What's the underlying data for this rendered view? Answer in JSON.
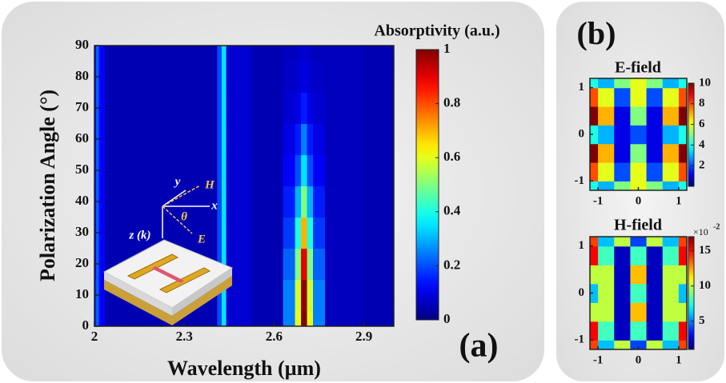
{
  "chart_data": [
    {
      "type": "heatmap",
      "panel_label": "(a)",
      "colorbar_label": "Absorptivity (a.u.)",
      "xlabel": "Wavelength (µm)",
      "ylabel": "Polarization Angle (°)",
      "x": [
        2.0,
        2.01,
        2.02,
        2.05,
        2.2,
        2.4,
        2.42,
        2.43,
        2.45,
        2.6,
        2.66,
        2.68,
        2.7,
        2.72,
        2.74,
        2.8,
        3.0
      ],
      "y": [
        0,
        10,
        20,
        30,
        40,
        50,
        60,
        70,
        80,
        90
      ],
      "z": [
        [
          0.15,
          0.22,
          0.12,
          0.05,
          0.05,
          0.05,
          0.2,
          0.35,
          0.08,
          0.05,
          0.25,
          0.6,
          1.0,
          0.6,
          0.25,
          0.06,
          0.05
        ],
        [
          0.15,
          0.22,
          0.12,
          0.05,
          0.05,
          0.05,
          0.2,
          0.35,
          0.08,
          0.05,
          0.25,
          0.58,
          0.98,
          0.58,
          0.25,
          0.06,
          0.05
        ],
        [
          0.12,
          0.22,
          0.12,
          0.05,
          0.05,
          0.05,
          0.2,
          0.35,
          0.08,
          0.05,
          0.22,
          0.5,
          0.9,
          0.5,
          0.22,
          0.06,
          0.05
        ],
        [
          0.1,
          0.22,
          0.12,
          0.05,
          0.05,
          0.05,
          0.2,
          0.35,
          0.08,
          0.05,
          0.18,
          0.4,
          0.7,
          0.4,
          0.18,
          0.06,
          0.05
        ],
        [
          0.1,
          0.22,
          0.12,
          0.05,
          0.05,
          0.05,
          0.2,
          0.35,
          0.08,
          0.05,
          0.15,
          0.3,
          0.5,
          0.3,
          0.15,
          0.06,
          0.05
        ],
        [
          0.1,
          0.22,
          0.12,
          0.05,
          0.05,
          0.05,
          0.2,
          0.35,
          0.08,
          0.05,
          0.12,
          0.2,
          0.35,
          0.2,
          0.12,
          0.06,
          0.05
        ],
        [
          0.1,
          0.22,
          0.12,
          0.05,
          0.05,
          0.05,
          0.2,
          0.35,
          0.08,
          0.05,
          0.1,
          0.15,
          0.25,
          0.15,
          0.1,
          0.06,
          0.05
        ],
        [
          0.1,
          0.22,
          0.12,
          0.05,
          0.05,
          0.05,
          0.2,
          0.35,
          0.08,
          0.05,
          0.08,
          0.1,
          0.15,
          0.1,
          0.08,
          0.06,
          0.05
        ],
        [
          0.1,
          0.22,
          0.12,
          0.05,
          0.05,
          0.05,
          0.2,
          0.35,
          0.08,
          0.05,
          0.07,
          0.08,
          0.1,
          0.08,
          0.07,
          0.06,
          0.05
        ],
        [
          0.1,
          0.22,
          0.12,
          0.05,
          0.05,
          0.05,
          0.2,
          0.35,
          0.08,
          0.05,
          0.06,
          0.07,
          0.08,
          0.07,
          0.06,
          0.06,
          0.05
        ]
      ],
      "xlim": [
        2,
        3
      ],
      "ylim": [
        0,
        90
      ],
      "xticks": [
        2,
        2.3,
        2.6,
        2.9
      ],
      "yticks": [
        0,
        10,
        20,
        30,
        40,
        50,
        60,
        70,
        80,
        90
      ],
      "clim": [
        0,
        1
      ],
      "cticks": [
        0,
        0.2,
        0.4,
        0.6,
        0.8,
        1
      ],
      "inset_labels": [
        "y",
        "H",
        "x",
        "θ",
        "z (k)",
        "E"
      ]
    },
    {
      "type": "heatmap",
      "panel_label": "(b)",
      "title": "E-field",
      "x": [
        -1.2,
        -0.8,
        -0.4,
        0,
        0.4,
        0.8,
        1.2
      ],
      "y": [
        -1.2,
        -0.8,
        -0.4,
        0,
        0.4,
        0.8,
        1.2
      ],
      "z": [
        [
          4,
          3,
          5,
          6,
          5,
          3,
          4
        ],
        [
          8,
          6,
          2,
          6,
          2,
          6,
          8
        ],
        [
          10,
          7,
          1,
          5,
          1,
          7,
          10
        ],
        [
          4,
          3,
          1,
          2,
          1,
          3,
          4
        ],
        [
          10,
          7,
          1,
          5,
          1,
          7,
          10
        ],
        [
          8,
          6,
          2,
          6,
          2,
          6,
          8
        ],
        [
          4,
          3,
          5,
          6,
          5,
          3,
          4
        ]
      ],
      "xlim": [
        -1.2,
        1.2
      ],
      "ylim": [
        -1.2,
        1.2
      ],
      "xticks": [
        -1,
        0,
        1
      ],
      "yticks": [
        -1,
        0,
        1
      ],
      "clim": [
        0,
        10
      ],
      "cticks": [
        2,
        4,
        6,
        8,
        10
      ]
    },
    {
      "type": "heatmap",
      "title": "H-field",
      "colorbar_multiplier": {
        "text": "×10",
        "exponent": "-2"
      },
      "x": [
        -1.2,
        -0.8,
        -0.4,
        0,
        0.4,
        0.8,
        1.2
      ],
      "y": [
        -1.2,
        -0.8,
        -0.4,
        0,
        0.4,
        0.8,
        1.2
      ],
      "z": [
        [
          14,
          6,
          10,
          4,
          10,
          6,
          14
        ],
        [
          15,
          8,
          2,
          8,
          2,
          8,
          15
        ],
        [
          10,
          10,
          2,
          12,
          2,
          10,
          10
        ],
        [
          6,
          10,
          2,
          8,
          2,
          10,
          6
        ],
        [
          10,
          10,
          2,
          12,
          2,
          10,
          10
        ],
        [
          15,
          8,
          2,
          8,
          2,
          8,
          15
        ],
        [
          14,
          6,
          10,
          4,
          10,
          6,
          14
        ]
      ],
      "xlim": [
        -1.2,
        1.2
      ],
      "ylim": [
        -1.2,
        1.2
      ],
      "xticks": [
        -1,
        0,
        1
      ],
      "yticks": [
        -1,
        0,
        1
      ],
      "clim": [
        1,
        17
      ],
      "cticks": [
        5,
        10,
        15
      ]
    }
  ]
}
